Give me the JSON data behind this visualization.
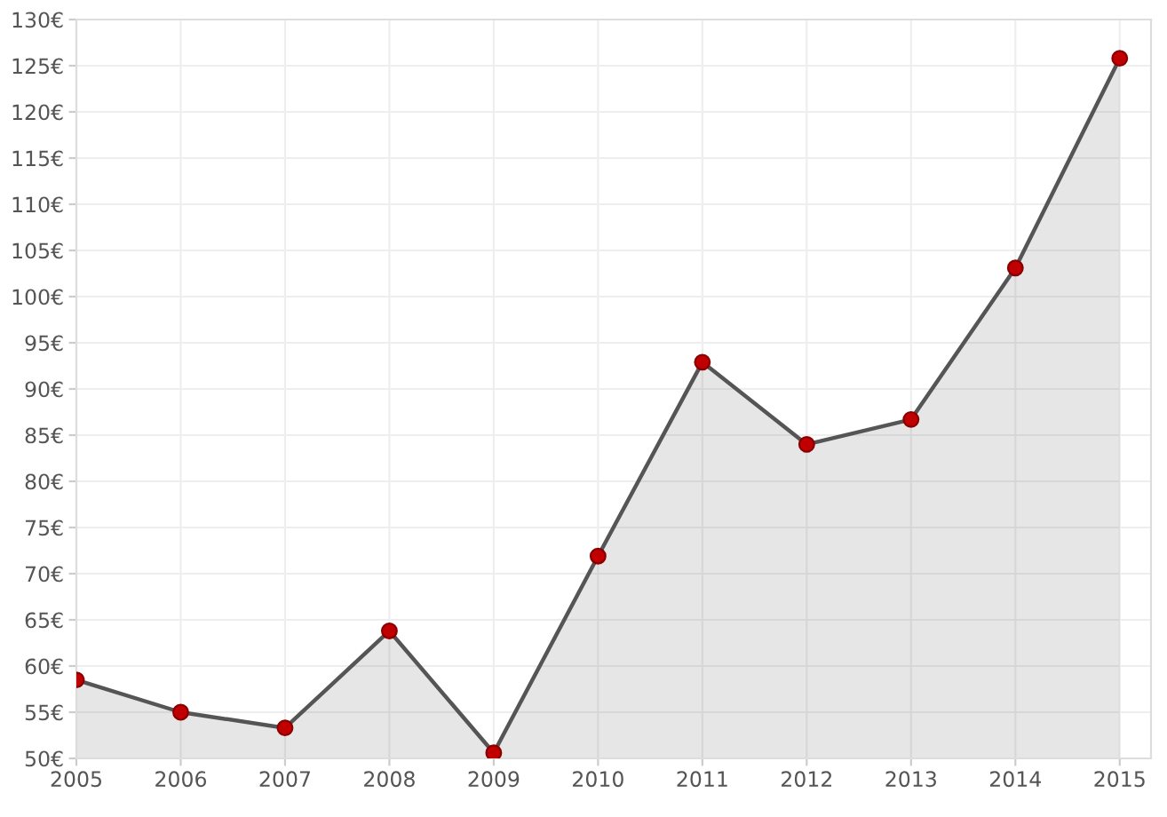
{
  "chart_data": {
    "type": "area",
    "x": [
      2005,
      2006,
      2007,
      2008,
      2009,
      2010,
      2011,
      2012,
      2013,
      2014,
      2015
    ],
    "series": [
      {
        "color": "#555555",
        "values": [
          58.5,
          55.0,
          53.3,
          63.8,
          50.6,
          71.9,
          92.9,
          84.0,
          86.7,
          103.1,
          125.8
        ]
      }
    ],
    "xlim": [
      2005,
      2015.3
    ],
    "xticks": [
      2005,
      2006,
      2007,
      2008,
      2009,
      2010,
      2011,
      2012,
      2013,
      2014,
      2015
    ],
    "ylim": [
      50,
      130
    ],
    "yticks": [
      {
        "value": 50,
        "label": "50€"
      },
      {
        "value": 55,
        "label": "55€"
      },
      {
        "value": 60,
        "label": "60€"
      },
      {
        "value": 65,
        "label": "65€"
      },
      {
        "value": 70,
        "label": "70€"
      },
      {
        "value": 75,
        "label": "75€"
      },
      {
        "value": 80,
        "label": "80€"
      },
      {
        "value": 85,
        "label": "85€"
      },
      {
        "value": 90,
        "label": "90€"
      },
      {
        "value": 95,
        "label": "95€"
      },
      {
        "value": 100,
        "label": "100€"
      },
      {
        "value": 105,
        "label": "105€"
      },
      {
        "value": 110,
        "label": "110€"
      },
      {
        "value": 115,
        "label": "115€"
      },
      {
        "value": 120,
        "label": "120€"
      },
      {
        "value": 125,
        "label": "125€"
      },
      {
        "value": 130,
        "label": "130€"
      }
    ],
    "grid": true,
    "legend": false,
    "marker": "circle",
    "line_style": "solid"
  }
}
